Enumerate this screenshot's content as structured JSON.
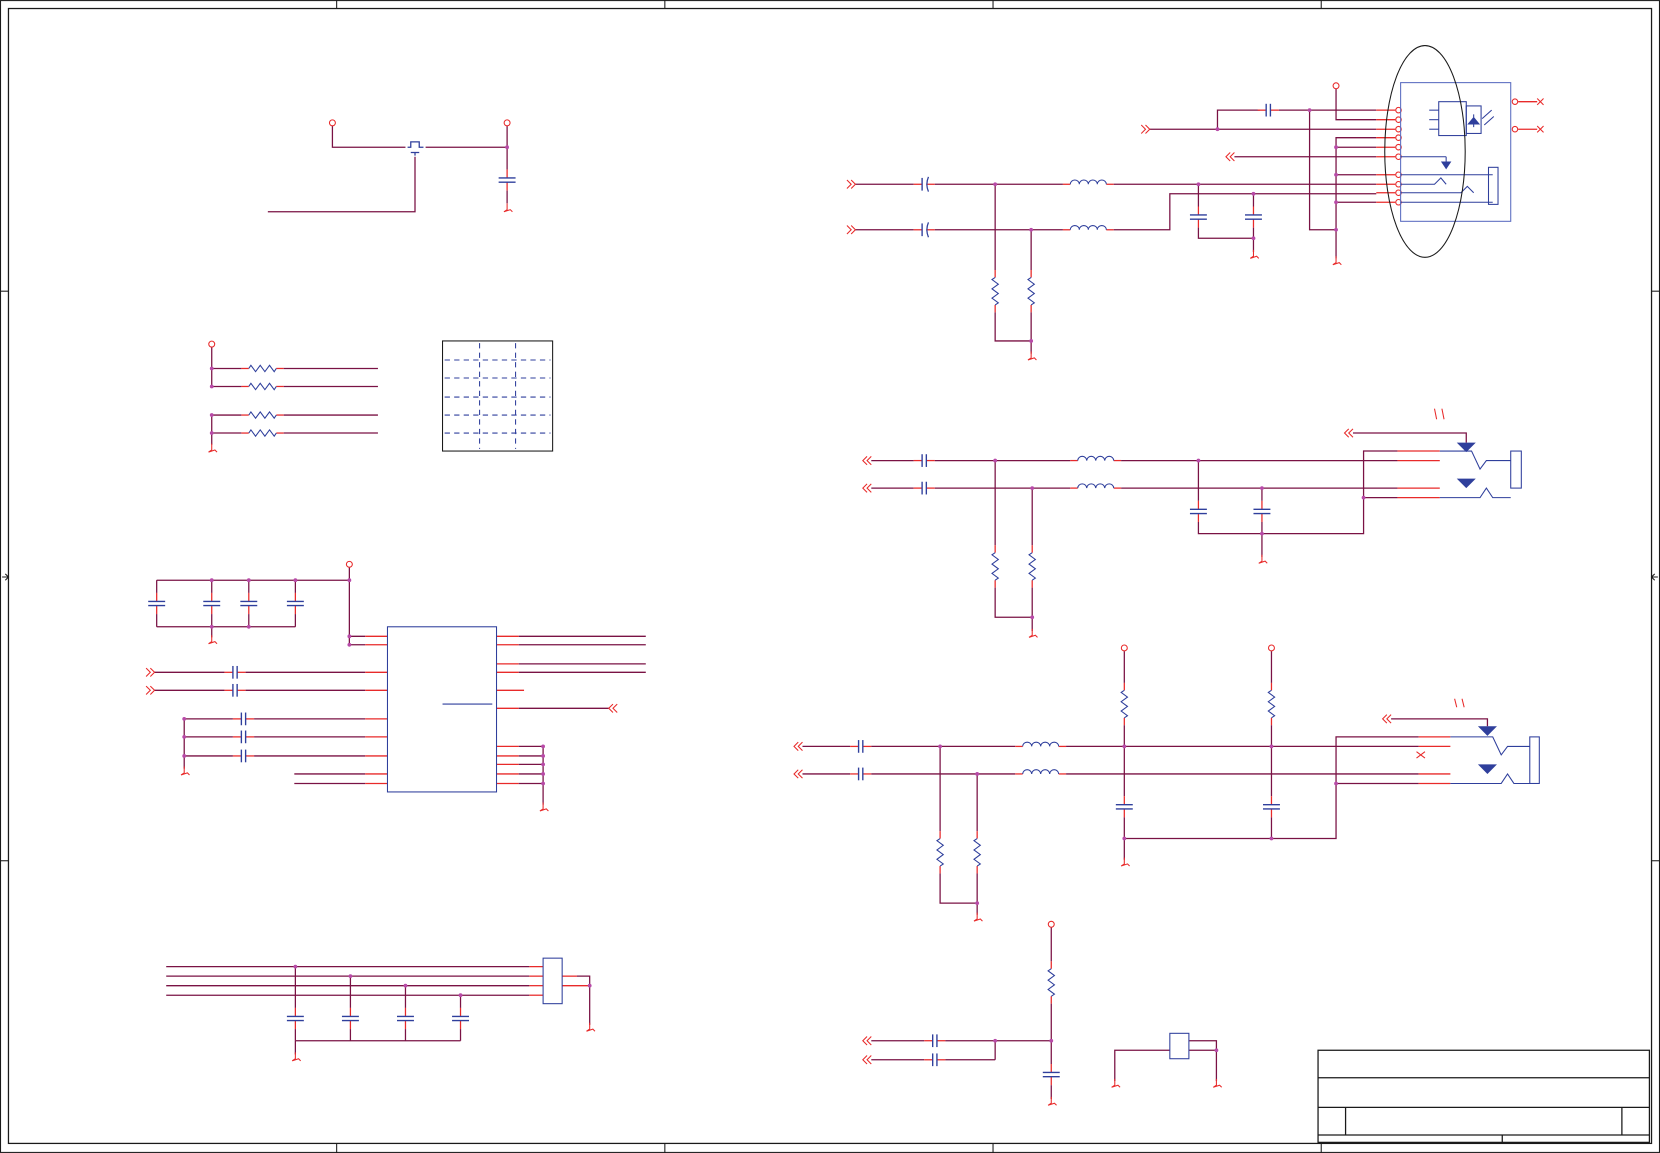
{
  "colors": {
    "wire": "#7a1244",
    "pin": "#e82a2a",
    "component": "#2f3f9c",
    "junction": "#b84aa8",
    "frame": "#1a1a1a",
    "connector_box": "#5a6cc0"
  },
  "title_block": {}
}
